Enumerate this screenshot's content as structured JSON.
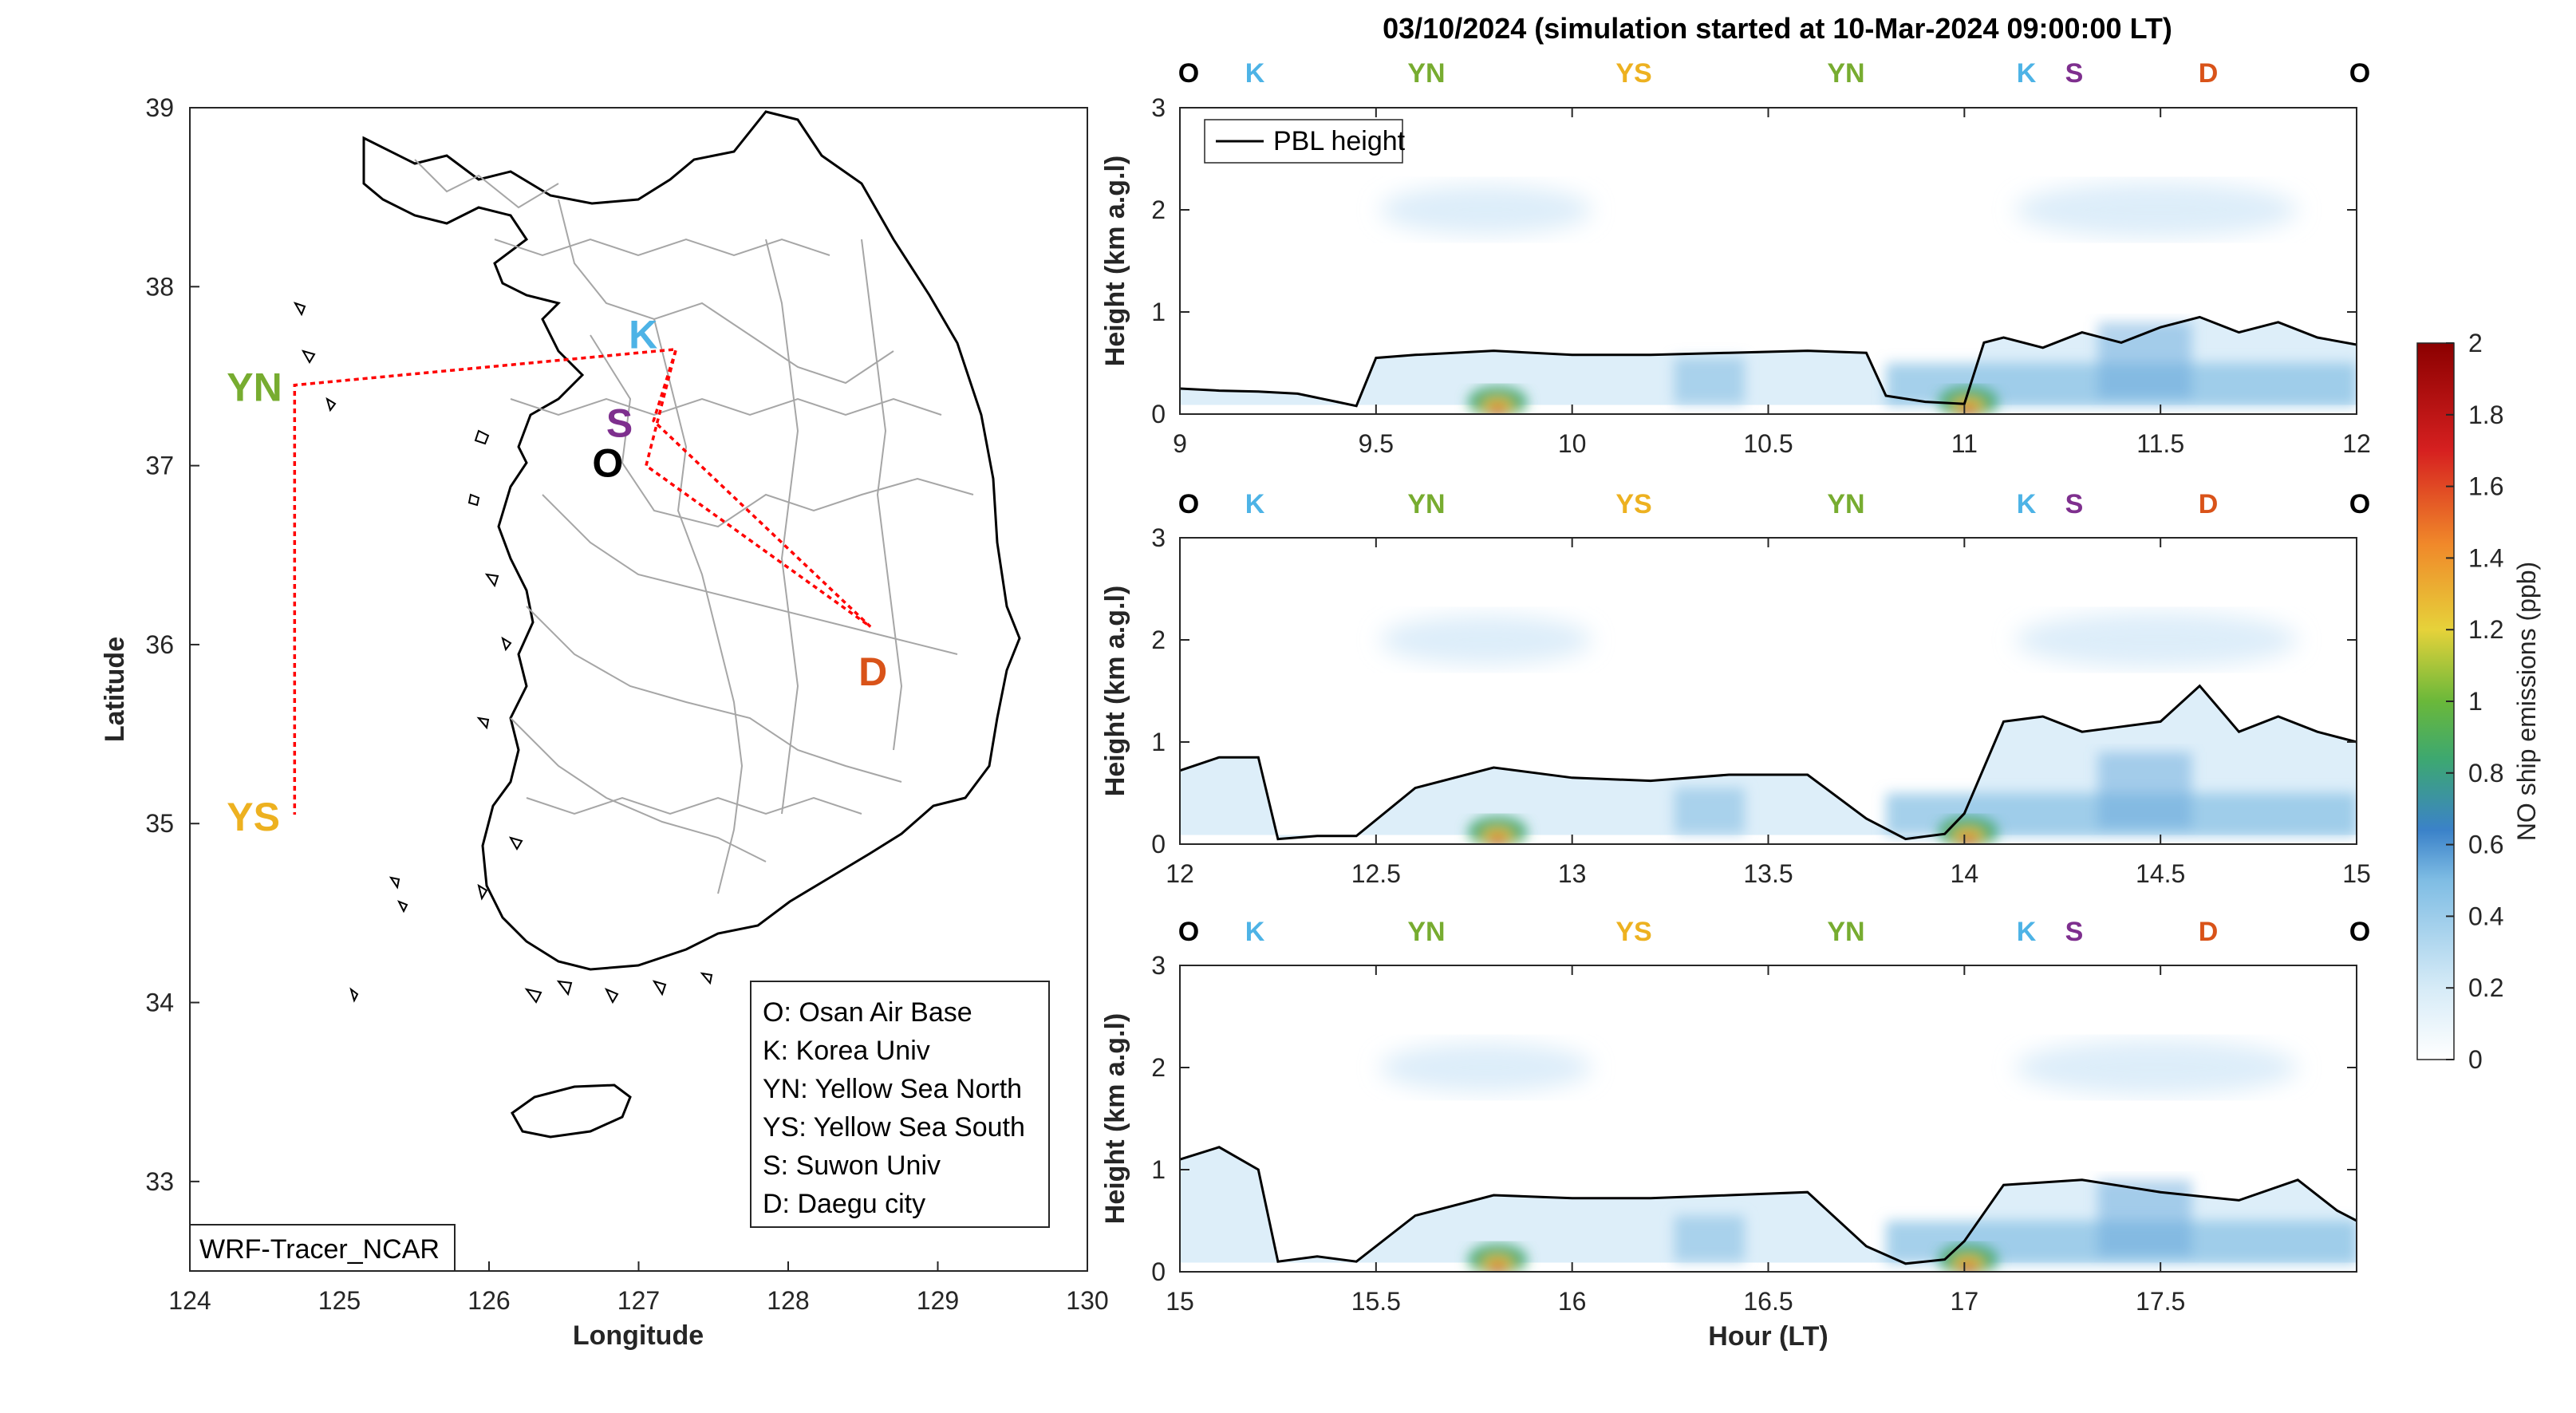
{
  "title": "03/10/2024 (simulation started at 10-Mar-2024 09:00:00 LT)",
  "colors": {
    "O": "#000000",
    "K": "#4db3e6",
    "YN": "#77ac30",
    "YS": "#edb120",
    "S": "#7e2f8e",
    "D": "#d95319",
    "track": "#ff0000",
    "pbl": "#000000"
  },
  "map": {
    "xlabel": "Longitude",
    "ylabel": "Latitude",
    "xlim": [
      124,
      130
    ],
    "ylim": [
      32.5,
      39
    ],
    "xticks": [
      "124",
      "125",
      "126",
      "127",
      "128",
      "129",
      "130"
    ],
    "yticks": [
      "33",
      "34",
      "35",
      "36",
      "37",
      "38",
      "39"
    ],
    "watermark": "WRF-Tracer_NCAR",
    "points": [
      {
        "id": "O",
        "label": "O",
        "lon": 126.85,
        "lat": 37.05,
        "color": "O"
      },
      {
        "id": "K",
        "label": "K",
        "lon": 127.03,
        "lat": 37.59,
        "color": "K"
      },
      {
        "id": "YN",
        "label": "YN",
        "lon": 124.7,
        "lat": 37.45,
        "color": "YN"
      },
      {
        "id": "YS",
        "label": "YS",
        "lon": 124.7,
        "lat": 35.05,
        "color": "YS"
      },
      {
        "id": "S",
        "label": "S",
        "lon": 126.97,
        "lat": 37.25,
        "color": "S"
      },
      {
        "id": "D",
        "label": "D",
        "lon": 128.55,
        "lat": 35.95,
        "color": "D"
      }
    ],
    "track": [
      [
        127.05,
        37.0
      ],
      [
        127.25,
        37.65
      ],
      [
        124.7,
        37.45
      ],
      [
        124.7,
        35.05
      ],
      [
        124.7,
        37.45
      ],
      [
        127.25,
        37.65
      ],
      [
        127.1,
        37.25
      ],
      [
        128.55,
        36.1
      ],
      [
        127.05,
        37.0
      ]
    ],
    "legend": [
      "O: Osan Air Base",
      "K: Korea Univ",
      "YN: Yellow Sea North",
      "YS: Yellow Sea South",
      "S: Suwon Univ",
      "D: Daegu city"
    ]
  },
  "panels": [
    {
      "xlim": [
        9,
        12
      ],
      "xticks": [
        "9",
        "9.5",
        "10",
        "10.5",
        "11",
        "11.5",
        "12"
      ],
      "markers": [
        [
          "O",
          8.98
        ],
        [
          "K",
          9.45
        ],
        [
          "YN",
          10.08
        ],
        [
          "YS",
          11.4
        ],
        [
          "YN",
          12.72
        ],
        [
          "K",
          13.75
        ],
        [
          "S",
          14.08
        ],
        [
          "D",
          15.0
        ],
        [
          "O",
          16.0
        ]
      ],
      "pbl": [
        [
          9.0,
          0.25
        ],
        [
          9.1,
          0.23
        ],
        [
          9.2,
          0.22
        ],
        [
          9.3,
          0.2
        ],
        [
          9.4,
          0.12
        ],
        [
          9.45,
          0.08
        ],
        [
          9.5,
          0.55
        ],
        [
          9.6,
          0.58
        ],
        [
          9.8,
          0.62
        ],
        [
          10.0,
          0.58
        ],
        [
          10.2,
          0.58
        ],
        [
          10.4,
          0.6
        ],
        [
          10.6,
          0.62
        ],
        [
          10.75,
          0.6
        ],
        [
          10.8,
          0.18
        ],
        [
          10.9,
          0.12
        ],
        [
          11.0,
          0.1
        ],
        [
          11.05,
          0.7
        ],
        [
          11.1,
          0.75
        ],
        [
          11.2,
          0.65
        ],
        [
          11.3,
          0.8
        ],
        [
          11.4,
          0.7
        ],
        [
          11.5,
          0.85
        ],
        [
          11.6,
          0.95
        ],
        [
          11.7,
          0.8
        ],
        [
          11.8,
          0.9
        ],
        [
          11.9,
          0.75
        ],
        [
          12.0,
          0.68
        ]
      ]
    },
    {
      "xlim": [
        12,
        15
      ],
      "xticks": [
        "12",
        "12.5",
        "13",
        "13.5",
        "14",
        "14.5",
        "15"
      ],
      "markers": [
        [
          "O",
          8.98
        ],
        [
          "K",
          9.45
        ],
        [
          "YN",
          10.08
        ],
        [
          "YS",
          11.4
        ],
        [
          "YN",
          12.72
        ],
        [
          "K",
          13.75
        ],
        [
          "S",
          14.08
        ],
        [
          "D",
          15.0
        ],
        [
          "O",
          16.0
        ]
      ],
      "pbl": [
        [
          12.0,
          0.72
        ],
        [
          12.1,
          0.85
        ],
        [
          12.2,
          0.85
        ],
        [
          12.25,
          0.05
        ],
        [
          12.35,
          0.08
        ],
        [
          12.45,
          0.08
        ],
        [
          12.6,
          0.55
        ],
        [
          12.8,
          0.75
        ],
        [
          13.0,
          0.65
        ],
        [
          13.2,
          0.62
        ],
        [
          13.4,
          0.68
        ],
        [
          13.6,
          0.68
        ],
        [
          13.75,
          0.25
        ],
        [
          13.85,
          0.05
        ],
        [
          13.95,
          0.1
        ],
        [
          14.0,
          0.3
        ],
        [
          14.1,
          1.2
        ],
        [
          14.2,
          1.25
        ],
        [
          14.3,
          1.1
        ],
        [
          14.4,
          1.15
        ],
        [
          14.5,
          1.2
        ],
        [
          14.6,
          1.55
        ],
        [
          14.7,
          1.1
        ],
        [
          14.8,
          1.25
        ],
        [
          14.9,
          1.1
        ],
        [
          15.0,
          1.0
        ]
      ]
    },
    {
      "xlim": [
        15,
        18
      ],
      "xticks": [
        "15",
        "15.5",
        "16",
        "16.5",
        "17",
        "17.5"
      ],
      "xlabel": "Hour (LT)",
      "markers": [
        [
          "O",
          8.98
        ],
        [
          "K",
          9.45
        ],
        [
          "YN",
          10.08
        ],
        [
          "YS",
          11.4
        ],
        [
          "YN",
          12.72
        ],
        [
          "K",
          13.75
        ],
        [
          "S",
          14.08
        ],
        [
          "D",
          15.0
        ],
        [
          "O",
          16.0
        ]
      ],
      "pbl": [
        [
          15.0,
          1.1
        ],
        [
          15.1,
          1.22
        ],
        [
          15.2,
          1.0
        ],
        [
          15.25,
          0.1
        ],
        [
          15.35,
          0.15
        ],
        [
          15.45,
          0.1
        ],
        [
          15.6,
          0.55
        ],
        [
          15.8,
          0.75
        ],
        [
          16.0,
          0.72
        ],
        [
          16.2,
          0.72
        ],
        [
          16.4,
          0.75
        ],
        [
          16.6,
          0.78
        ],
        [
          16.75,
          0.25
        ],
        [
          16.85,
          0.08
        ],
        [
          16.95,
          0.12
        ],
        [
          17.0,
          0.3
        ],
        [
          17.1,
          0.85
        ],
        [
          17.3,
          0.9
        ],
        [
          17.5,
          0.78
        ],
        [
          17.7,
          0.7
        ],
        [
          17.85,
          0.9
        ],
        [
          17.95,
          0.6
        ],
        [
          18.0,
          0.5
        ]
      ]
    }
  ],
  "heightlabel": "Height (km a.g.l)",
  "yticks": [
    "0",
    "1",
    "2",
    "3"
  ],
  "pbl_legend": "PBL height",
  "colorbar": {
    "label": "NO ship emissions (ppb)",
    "range": [
      0,
      2
    ],
    "ticks": [
      "0",
      "0.2",
      "0.4",
      "0.6",
      "0.8",
      "1",
      "1.2",
      "1.4",
      "1.6",
      "1.8",
      "2"
    ],
    "stops": [
      "#ffffff",
      "#cfe7f5",
      "#6fb3e0",
      "#3a7fc8",
      "#4aa84a",
      "#e0d040",
      "#f08020",
      "#d02020",
      "#8b0000"
    ]
  }
}
